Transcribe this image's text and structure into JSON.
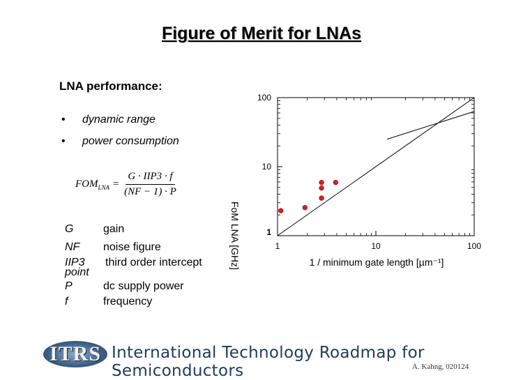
{
  "title": "Figure of Merit for LNAs",
  "performance": {
    "heading": "LNA performance:",
    "bullets": [
      "dynamic range",
      "power consumption"
    ],
    "bullet_symbol": "•"
  },
  "formula": {
    "lhs": "FOM",
    "lhs_sub": "LNA",
    "equals": "=",
    "numerator": "G · IIP3 · f",
    "denominator": "(NF − 1) · P"
  },
  "legend": [
    {
      "symbol": "G",
      "desc": "gain"
    },
    {
      "symbol": "NF",
      "desc": "noise figure"
    },
    {
      "symbol": "IIP3",
      "desc": "third order intercept"
    },
    {
      "symbol": "point",
      "desc": ""
    },
    {
      "symbol": "P",
      "desc": "dc supply power"
    },
    {
      "symbol": "f",
      "desc": "frequency"
    }
  ],
  "chart_data": {
    "type": "scatter",
    "xlabel": "1 / minimum gate length [µm⁻¹]",
    "ylabel": "FoM LNA [GHz]",
    "xscale": "log",
    "yscale": "log",
    "xlim": [
      1,
      100
    ],
    "ylim": [
      1,
      100
    ],
    "xticks": [
      "1",
      "10",
      "100"
    ],
    "yticks": [
      "1",
      "10",
      "100"
    ],
    "points_color": "#cc2222",
    "series": [
      {
        "type": "scatter",
        "x": [
          1.08,
          1.9,
          2.8,
          2.8,
          2.8,
          3.9
        ],
        "y": [
          2.3,
          2.55,
          3.5,
          4.9,
          5.9,
          5.9
        ]
      },
      {
        "type": "line",
        "x": [
          1,
          100
        ],
        "y": [
          1,
          100
        ]
      },
      {
        "type": "line",
        "x": [
          13,
          100
        ],
        "y": [
          25,
          63
        ]
      }
    ]
  },
  "footer": {
    "logo_text": "ITRS",
    "text": "International Technology Roadmap for Semiconductors",
    "author": "A. Kahng, 020124"
  }
}
